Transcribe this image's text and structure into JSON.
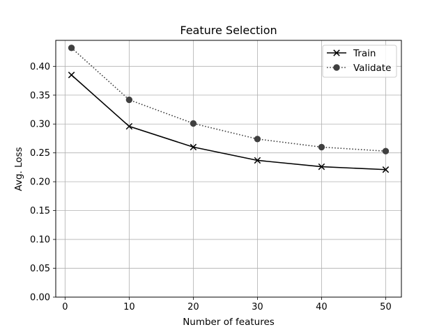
{
  "chart_data": {
    "type": "line",
    "title": "Feature Selection",
    "xlabel": "Number of features",
    "ylabel": "Avg. Loss",
    "xlim": [
      -1.45,
      52.45
    ],
    "ylim": [
      0.0,
      0.445
    ],
    "xticks": [
      0,
      10,
      20,
      30,
      40,
      50
    ],
    "yticks": [
      0.0,
      0.05,
      0.1,
      0.15,
      0.2,
      0.25,
      0.3,
      0.35,
      0.4
    ],
    "xtick_labels": [
      "0",
      "10",
      "20",
      "30",
      "40",
      "50"
    ],
    "ytick_labels": [
      "0.00",
      "0.05",
      "0.10",
      "0.15",
      "0.20",
      "0.25",
      "0.30",
      "0.35",
      "0.40"
    ],
    "grid": true,
    "legend_position": "top-right",
    "x": [
      1,
      10,
      20,
      30,
      40,
      50
    ],
    "series": [
      {
        "name": "Train",
        "values": [
          0.385,
          0.296,
          0.26,
          0.237,
          0.226,
          0.221
        ],
        "color": "#000000",
        "linestyle": "solid",
        "marker": "x"
      },
      {
        "name": "Validate",
        "values": [
          0.432,
          0.342,
          0.301,
          0.274,
          0.26,
          0.253
        ],
        "color": "#404040",
        "linestyle": "dotted",
        "marker": "o"
      }
    ]
  }
}
